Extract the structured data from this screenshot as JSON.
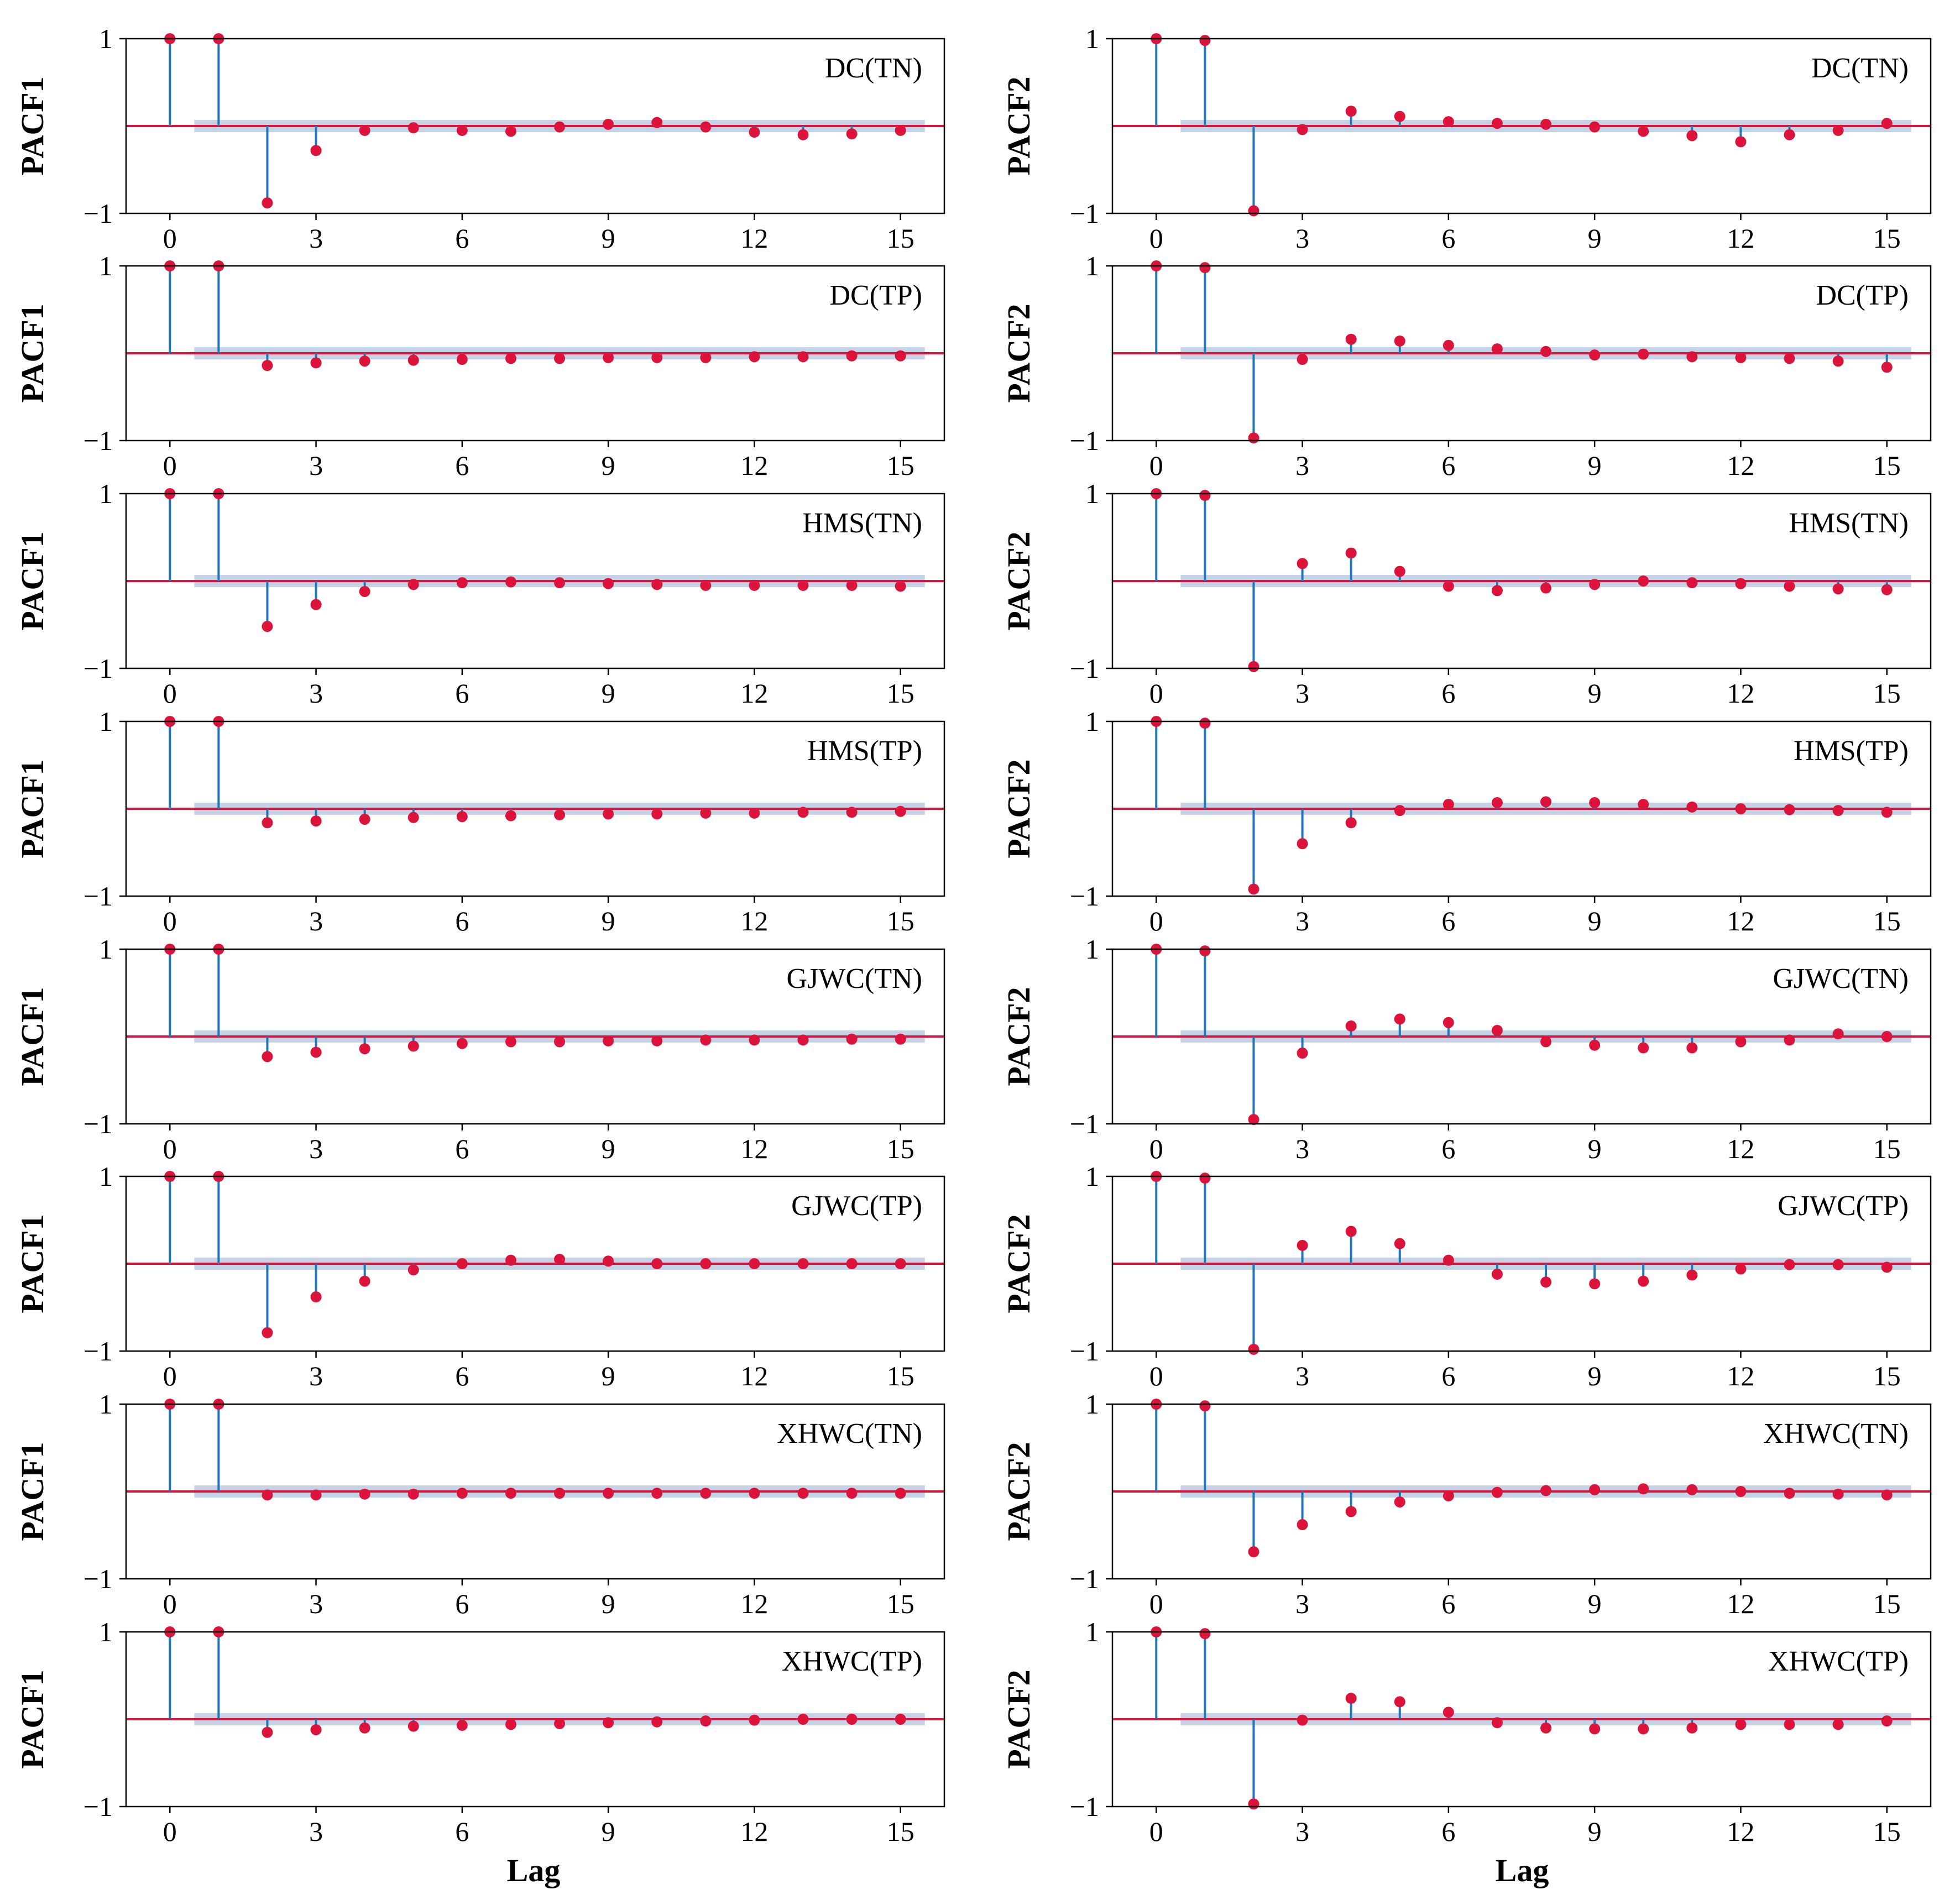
{
  "figure": {
    "xlabel": "Lag",
    "column_ylabels": [
      "PACF1",
      "PACF2"
    ],
    "colors": {
      "stem": "#1f77b4",
      "marker": "#dc143c",
      "baseline": "#dc143c",
      "confidence_band": "#b0c4de",
      "frame": "#000000"
    }
  },
  "chart_data": [
    {
      "type": "stem",
      "title": "DC(TN)",
      "ylabel": "PACF1",
      "xlabel": "Lag",
      "xticks": [
        0,
        3,
        6,
        9,
        12,
        15
      ],
      "yticks": [
        -1,
        1
      ],
      "ylim": [
        -1,
        1
      ],
      "xlim": [
        -0.9,
        15.9
      ],
      "confidence_band": [
        -0.07,
        0.07
      ],
      "x": [
        0,
        1,
        2,
        3,
        4,
        5,
        6,
        7,
        8,
        9,
        10,
        11,
        12,
        13,
        14,
        15
      ],
      "values": [
        1,
        1,
        -0.88,
        -0.28,
        -0.05,
        -0.02,
        -0.05,
        -0.06,
        -0.01,
        0.02,
        0.04,
        -0.01,
        -0.07,
        -0.1,
        -0.09,
        -0.05
      ]
    },
    {
      "type": "stem",
      "title": "DC(TN)",
      "ylabel": "PACF2",
      "xlabel": "Lag",
      "xticks": [
        0,
        3,
        6,
        9,
        12,
        15
      ],
      "yticks": [
        -1,
        1
      ],
      "ylim": [
        -1,
        1
      ],
      "xlim": [
        -0.9,
        15.9
      ],
      "confidence_band": [
        -0.07,
        0.07
      ],
      "x": [
        0,
        1,
        2,
        3,
        4,
        5,
        6,
        7,
        8,
        9,
        10,
        11,
        12,
        13,
        14,
        15
      ],
      "values": [
        1,
        0.98,
        -0.97,
        -0.04,
        0.17,
        0.11,
        0.05,
        0.03,
        0.02,
        -0.01,
        -0.06,
        -0.11,
        -0.18,
        -0.1,
        -0.05,
        0.03
      ]
    },
    {
      "type": "stem",
      "title": "DC(TP)",
      "ylabel": "PACF1",
      "xlabel": "Lag",
      "xticks": [
        0,
        3,
        6,
        9,
        12,
        15
      ],
      "yticks": [
        -1,
        1
      ],
      "ylim": [
        -1,
        1
      ],
      "xlim": [
        -0.9,
        15.9
      ],
      "confidence_band": [
        -0.07,
        0.07
      ],
      "x": [
        0,
        1,
        2,
        3,
        4,
        5,
        6,
        7,
        8,
        9,
        10,
        11,
        12,
        13,
        14,
        15
      ],
      "values": [
        1,
        1,
        -0.14,
        -0.11,
        -0.09,
        -0.08,
        -0.07,
        -0.06,
        -0.06,
        -0.05,
        -0.05,
        -0.05,
        -0.04,
        -0.04,
        -0.03,
        -0.03
      ]
    },
    {
      "type": "stem",
      "title": "DC(TP)",
      "ylabel": "PACF2",
      "xlabel": "Lag",
      "xticks": [
        0,
        3,
        6,
        9,
        12,
        15
      ],
      "yticks": [
        -1,
        1
      ],
      "ylim": [
        -1,
        1
      ],
      "xlim": [
        -0.9,
        15.9
      ],
      "confidence_band": [
        -0.07,
        0.07
      ],
      "x": [
        0,
        1,
        2,
        3,
        4,
        5,
        6,
        7,
        8,
        9,
        10,
        11,
        12,
        13,
        14,
        15
      ],
      "values": [
        1,
        0.98,
        -0.97,
        -0.07,
        0.16,
        0.14,
        0.09,
        0.05,
        0.02,
        -0.02,
        -0.01,
        -0.04,
        -0.05,
        -0.06,
        -0.09,
        -0.16
      ]
    },
    {
      "type": "stem",
      "title": "HMS(TN)",
      "ylabel": "PACF1",
      "xlabel": "Lag",
      "xticks": [
        0,
        3,
        6,
        9,
        12,
        15
      ],
      "yticks": [
        -1,
        1
      ],
      "ylim": [
        -1,
        1
      ],
      "xlim": [
        -0.9,
        15.9
      ],
      "confidence_band": [
        -0.07,
        0.07
      ],
      "x": [
        0,
        1,
        2,
        3,
        4,
        5,
        6,
        7,
        8,
        9,
        10,
        11,
        12,
        13,
        14,
        15
      ],
      "values": [
        1,
        1,
        -0.52,
        -0.27,
        -0.12,
        -0.04,
        -0.02,
        -0.01,
        -0.02,
        -0.03,
        -0.04,
        -0.05,
        -0.05,
        -0.05,
        -0.05,
        -0.06
      ]
    },
    {
      "type": "stem",
      "title": "HMS(TN)",
      "ylabel": "PACF2",
      "xlabel": "Lag",
      "xticks": [
        0,
        3,
        6,
        9,
        12,
        15
      ],
      "yticks": [
        -1,
        1
      ],
      "ylim": [
        -1,
        1
      ],
      "xlim": [
        -0.9,
        15.9
      ],
      "confidence_band": [
        -0.07,
        0.07
      ],
      "x": [
        0,
        1,
        2,
        3,
        4,
        5,
        6,
        7,
        8,
        9,
        10,
        11,
        12,
        13,
        14,
        15
      ],
      "values": [
        1,
        0.98,
        -0.98,
        0.2,
        0.32,
        0.11,
        -0.06,
        -0.11,
        -0.08,
        -0.04,
        0,
        -0.02,
        -0.03,
        -0.06,
        -0.09,
        -0.1
      ]
    },
    {
      "type": "stem",
      "title": "HMS(TP)",
      "ylabel": "PACF1",
      "xlabel": "Lag",
      "xticks": [
        0,
        3,
        6,
        9,
        12,
        15
      ],
      "yticks": [
        -1,
        1
      ],
      "ylim": [
        -1,
        1
      ],
      "xlim": [
        -0.9,
        15.9
      ],
      "confidence_band": [
        -0.07,
        0.07
      ],
      "x": [
        0,
        1,
        2,
        3,
        4,
        5,
        6,
        7,
        8,
        9,
        10,
        11,
        12,
        13,
        14,
        15
      ],
      "values": [
        1,
        1,
        -0.16,
        -0.14,
        -0.12,
        -0.1,
        -0.09,
        -0.08,
        -0.07,
        -0.06,
        -0.06,
        -0.05,
        -0.05,
        -0.04,
        -0.04,
        -0.03
      ]
    },
    {
      "type": "stem",
      "title": "HMS(TP)",
      "ylabel": "PACF2",
      "xlabel": "Lag",
      "xticks": [
        0,
        3,
        6,
        9,
        12,
        15
      ],
      "yticks": [
        -1,
        1
      ],
      "ylim": [
        -1,
        1
      ],
      "xlim": [
        -0.9,
        15.9
      ],
      "confidence_band": [
        -0.07,
        0.07
      ],
      "x": [
        0,
        1,
        2,
        3,
        4,
        5,
        6,
        7,
        8,
        9,
        10,
        11,
        12,
        13,
        14,
        15
      ],
      "values": [
        1,
        0.98,
        -0.92,
        -0.4,
        -0.16,
        -0.02,
        0.05,
        0.07,
        0.08,
        0.07,
        0.05,
        0.02,
        0,
        -0.01,
        -0.02,
        -0.04
      ]
    },
    {
      "type": "stem",
      "title": "GJWC(TN)",
      "ylabel": "PACF1",
      "xlabel": "Lag",
      "xticks": [
        0,
        3,
        6,
        9,
        12,
        15
      ],
      "yticks": [
        -1,
        1
      ],
      "ylim": [
        -1,
        1
      ],
      "xlim": [
        -0.9,
        15.9
      ],
      "confidence_band": [
        -0.07,
        0.07
      ],
      "x": [
        0,
        1,
        2,
        3,
        4,
        5,
        6,
        7,
        8,
        9,
        10,
        11,
        12,
        13,
        14,
        15
      ],
      "values": [
        1,
        1,
        -0.23,
        -0.18,
        -0.14,
        -0.11,
        -0.08,
        -0.06,
        -0.06,
        -0.05,
        -0.05,
        -0.04,
        -0.04,
        -0.04,
        -0.03,
        -0.03
      ]
    },
    {
      "type": "stem",
      "title": "GJWC(TN)",
      "ylabel": "PACF2",
      "xlabel": "Lag",
      "xticks": [
        0,
        3,
        6,
        9,
        12,
        15
      ],
      "yticks": [
        -1,
        1
      ],
      "ylim": [
        -1,
        1
      ],
      "xlim": [
        -0.9,
        15.9
      ],
      "confidence_band": [
        -0.07,
        0.07
      ],
      "x": [
        0,
        1,
        2,
        3,
        4,
        5,
        6,
        7,
        8,
        9,
        10,
        11,
        12,
        13,
        14,
        15
      ],
      "values": [
        1,
        0.98,
        -0.95,
        -0.19,
        0.12,
        0.2,
        0.16,
        0.07,
        -0.06,
        -0.1,
        -0.13,
        -0.13,
        -0.06,
        -0.04,
        0.03,
        0
      ]
    },
    {
      "type": "stem",
      "title": "GJWC(TP)",
      "ylabel": "PACF1",
      "xlabel": "Lag",
      "xticks": [
        0,
        3,
        6,
        9,
        12,
        15
      ],
      "yticks": [
        -1,
        1
      ],
      "ylim": [
        -1,
        1
      ],
      "xlim": [
        -0.9,
        15.9
      ],
      "confidence_band": [
        -0.07,
        0.07
      ],
      "x": [
        0,
        1,
        2,
        3,
        4,
        5,
        6,
        7,
        8,
        9,
        10,
        11,
        12,
        13,
        14,
        15
      ],
      "values": [
        1,
        1,
        -0.79,
        -0.38,
        -0.2,
        -0.07,
        0,
        0.04,
        0.05,
        0.03,
        0,
        0,
        0,
        0,
        0,
        0
      ]
    },
    {
      "type": "stem",
      "title": "GJWC(TP)",
      "ylabel": "PACF2",
      "xlabel": "Lag",
      "xticks": [
        0,
        3,
        6,
        9,
        12,
        15
      ],
      "yticks": [
        -1,
        1
      ],
      "ylim": [
        -1,
        1
      ],
      "xlim": [
        -0.9,
        15.9
      ],
      "confidence_band": [
        -0.07,
        0.07
      ],
      "x": [
        0,
        1,
        2,
        3,
        4,
        5,
        6,
        7,
        8,
        9,
        10,
        11,
        12,
        13,
        14,
        15
      ],
      "values": [
        1,
        0.98,
        -0.98,
        0.21,
        0.37,
        0.23,
        0.04,
        -0.12,
        -0.21,
        -0.23,
        -0.2,
        -0.13,
        -0.06,
        -0.01,
        -0.01,
        -0.04
      ]
    },
    {
      "type": "stem",
      "title": "XHWC(TN)",
      "ylabel": "PACF1",
      "xlabel": "Lag",
      "xticks": [
        0,
        3,
        6,
        9,
        12,
        15
      ],
      "yticks": [
        -1,
        1
      ],
      "ylim": [
        -1,
        1
      ],
      "xlim": [
        -0.9,
        15.9
      ],
      "confidence_band": [
        -0.07,
        0.07
      ],
      "x": [
        0,
        1,
        2,
        3,
        4,
        5,
        6,
        7,
        8,
        9,
        10,
        11,
        12,
        13,
        14,
        15
      ],
      "values": [
        1,
        1,
        -0.04,
        -0.04,
        -0.03,
        -0.03,
        -0.02,
        -0.02,
        -0.02,
        -0.02,
        -0.02,
        -0.02,
        -0.02,
        -0.02,
        -0.02,
        -0.02
      ]
    },
    {
      "type": "stem",
      "title": "XHWC(TN)",
      "ylabel": "PACF2",
      "xlabel": "Lag",
      "xticks": [
        0,
        3,
        6,
        9,
        12,
        15
      ],
      "yticks": [
        -1,
        1
      ],
      "ylim": [
        -1,
        1
      ],
      "xlim": [
        -0.9,
        15.9
      ],
      "confidence_band": [
        -0.07,
        0.07
      ],
      "x": [
        0,
        1,
        2,
        3,
        4,
        5,
        6,
        7,
        8,
        9,
        10,
        11,
        12,
        13,
        14,
        15
      ],
      "values": [
        1,
        0.98,
        -0.69,
        -0.38,
        -0.23,
        -0.12,
        -0.05,
        -0.01,
        0.01,
        0.02,
        0.03,
        0.02,
        0,
        -0.02,
        -0.03,
        -0.04
      ]
    },
    {
      "type": "stem",
      "title": "XHWC(TP)",
      "ylabel": "PACF1",
      "xlabel": "Lag",
      "xticks": [
        0,
        3,
        6,
        9,
        12,
        15
      ],
      "yticks": [
        -1,
        1
      ],
      "ylim": [
        -1,
        1
      ],
      "xlim": [
        -0.9,
        15.9
      ],
      "confidence_band": [
        -0.07,
        0.07
      ],
      "x": [
        0,
        1,
        2,
        3,
        4,
        5,
        6,
        7,
        8,
        9,
        10,
        11,
        12,
        13,
        14,
        15
      ],
      "values": [
        1,
        1,
        -0.15,
        -0.12,
        -0.1,
        -0.08,
        -0.07,
        -0.06,
        -0.05,
        -0.04,
        -0.03,
        -0.02,
        -0.01,
        0,
        0,
        0
      ]
    },
    {
      "type": "stem",
      "title": "XHWC(TP)",
      "ylabel": "PACF2",
      "xlabel": "Lag",
      "xticks": [
        0,
        3,
        6,
        9,
        12,
        15
      ],
      "yticks": [
        -1,
        1
      ],
      "ylim": [
        -1,
        1
      ],
      "xlim": [
        -0.9,
        15.9
      ],
      "confidence_band": [
        -0.07,
        0.07
      ],
      "x": [
        0,
        1,
        2,
        3,
        4,
        5,
        6,
        7,
        8,
        9,
        10,
        11,
        12,
        13,
        14,
        15
      ],
      "values": [
        1,
        0.98,
        -0.97,
        -0.01,
        0.24,
        0.2,
        0.08,
        -0.04,
        -0.1,
        -0.11,
        -0.11,
        -0.1,
        -0.06,
        -0.06,
        -0.06,
        -0.02
      ]
    }
  ]
}
